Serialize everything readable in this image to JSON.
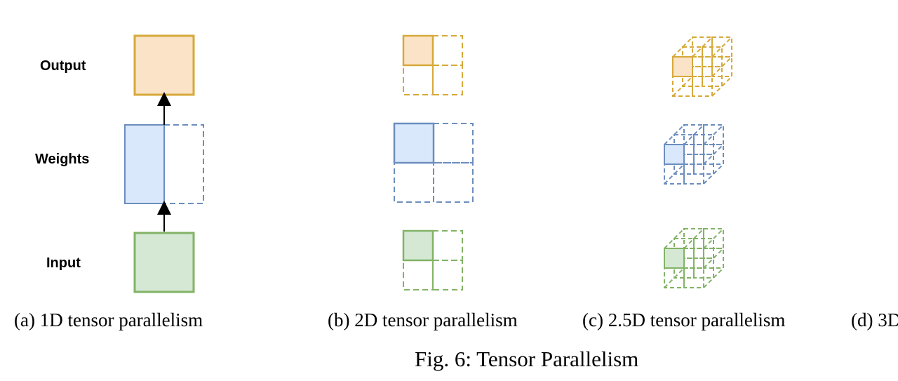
{
  "row_labels": {
    "output": "Output",
    "weights": "Weights",
    "input": "Input"
  },
  "subfigure_captions": {
    "a": "(a) 1D tensor parallelism",
    "b": "(b) 2D tensor parallelism",
    "c": "(c) 2.5D tensor parallelism",
    "d": "(d) 3D"
  },
  "figure_caption": "Fig. 6: Tensor Parallelism",
  "colors": {
    "output_stroke": "#d6a93a",
    "output_fill": "#fbe3c8",
    "weights_stroke": "#6c8ebf",
    "weights_fill": "#dae8fc",
    "input_stroke": "#82b366",
    "input_fill": "#d5e8d4",
    "arrow": "#000000"
  }
}
